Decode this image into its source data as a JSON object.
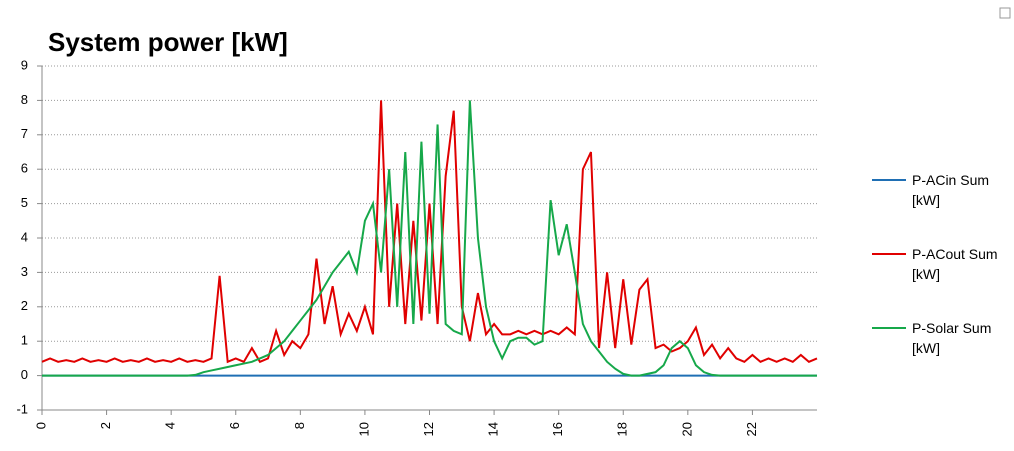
{
  "chart_data": {
    "type": "line",
    "title": "System power [kW]",
    "x": [
      0,
      0.25,
      0.5,
      0.75,
      1,
      1.25,
      1.5,
      1.75,
      2,
      2.25,
      2.5,
      2.75,
      3,
      3.25,
      3.5,
      3.75,
      4,
      4.25,
      4.5,
      4.75,
      5,
      5.25,
      5.5,
      5.75,
      6,
      6.25,
      6.5,
      6.75,
      7,
      7.25,
      7.5,
      7.75,
      8,
      8.25,
      8.5,
      8.75,
      9,
      9.25,
      9.5,
      9.75,
      10,
      10.25,
      10.5,
      10.75,
      11,
      11.25,
      11.5,
      11.75,
      12,
      12.25,
      12.5,
      12.75,
      13,
      13.25,
      13.5,
      13.75,
      14,
      14.25,
      14.5,
      14.75,
      15,
      15.25,
      15.5,
      15.75,
      16,
      16.25,
      16.5,
      16.75,
      17,
      17.25,
      17.5,
      17.75,
      18,
      18.25,
      18.5,
      18.75,
      19,
      19.25,
      19.5,
      19.75,
      20,
      20.25,
      20.5,
      20.75,
      21,
      21.25,
      21.5,
      21.75,
      22,
      22.25,
      22.5,
      22.75,
      23,
      23.25,
      23.5,
      23.75,
      24
    ],
    "series": [
      {
        "name": "P-ACin Sum [kW]",
        "color": "#1f6fb4",
        "values": [
          0,
          0,
          0,
          0,
          0,
          0,
          0,
          0,
          0,
          0,
          0,
          0,
          0,
          0,
          0,
          0,
          0,
          0,
          0,
          0,
          0,
          0,
          0,
          0,
          0,
          0,
          0,
          0,
          0,
          0,
          0,
          0,
          0,
          0,
          0,
          0,
          0,
          0,
          0,
          0,
          0,
          0,
          0,
          0,
          0,
          0,
          0,
          0,
          0,
          0,
          0,
          0,
          0,
          0,
          0,
          0,
          0,
          0,
          0,
          0,
          0,
          0,
          0,
          0,
          0,
          0,
          0,
          0,
          0,
          0,
          0,
          0,
          0,
          0,
          0,
          0,
          0,
          0,
          0,
          0,
          0,
          0,
          0,
          0,
          0,
          0,
          0,
          0,
          0,
          0,
          0,
          0,
          0,
          0,
          0,
          0,
          0
        ]
      },
      {
        "name": "P-ACout Sum [kW]",
        "color": "#e00000",
        "values": [
          0.4,
          0.5,
          0.4,
          0.45,
          0.4,
          0.5,
          0.4,
          0.45,
          0.4,
          0.5,
          0.4,
          0.45,
          0.4,
          0.5,
          0.4,
          0.45,
          0.4,
          0.5,
          0.4,
          0.45,
          0.4,
          0.5,
          2.9,
          0.4,
          0.5,
          0.4,
          0.8,
          0.4,
          0.5,
          1.3,
          0.6,
          1.0,
          0.8,
          1.2,
          3.4,
          1.5,
          2.6,
          1.2,
          1.8,
          1.3,
          2.0,
          1.2,
          8.0,
          2.0,
          5.0,
          1.5,
          4.5,
          1.6,
          5.0,
          1.5,
          5.8,
          7.7,
          2.0,
          1.0,
          2.4,
          1.2,
          1.5,
          1.2,
          1.2,
          1.3,
          1.2,
          1.3,
          1.2,
          1.3,
          1.2,
          1.4,
          1.2,
          6.0,
          6.5,
          0.8,
          3.0,
          0.8,
          2.8,
          0.9,
          2.5,
          2.8,
          0.8,
          0.9,
          0.7,
          0.8,
          1.0,
          1.4,
          0.6,
          0.9,
          0.5,
          0.8,
          0.5,
          0.4,
          0.6,
          0.4,
          0.5,
          0.4,
          0.5,
          0.4,
          0.6,
          0.4,
          0.5
        ]
      },
      {
        "name": "P-Solar Sum [kW]",
        "color": "#16a84a",
        "values": [
          0,
          0,
          0,
          0,
          0,
          0,
          0,
          0,
          0,
          0,
          0,
          0,
          0,
          0,
          0,
          0,
          0,
          0,
          0,
          0.02,
          0.1,
          0.15,
          0.2,
          0.25,
          0.3,
          0.35,
          0.4,
          0.5,
          0.6,
          0.8,
          1.0,
          1.3,
          1.6,
          1.9,
          2.2,
          2.6,
          3.0,
          3.3,
          3.6,
          3.0,
          4.5,
          5.0,
          3.0,
          6.0,
          2.0,
          6.5,
          1.5,
          6.8,
          1.8,
          7.3,
          1.5,
          1.3,
          1.2,
          8.0,
          4.0,
          2.0,
          1.0,
          0.5,
          1.0,
          1.1,
          1.1,
          0.9,
          1.0,
          5.1,
          3.5,
          4.4,
          3.0,
          1.5,
          1.0,
          0.7,
          0.4,
          0.2,
          0.05,
          0,
          0,
          0.05,
          0.1,
          0.3,
          0.8,
          1.0,
          0.8,
          0.3,
          0.1,
          0.02,
          0,
          0,
          0,
          0,
          0,
          0,
          0,
          0,
          0,
          0,
          0,
          0,
          0
        ]
      }
    ],
    "xlim": [
      0,
      24
    ],
    "xticks": [
      0,
      2,
      4,
      6,
      8,
      10,
      12,
      14,
      16,
      18,
      20,
      22
    ],
    "ylim": [
      -1,
      9
    ],
    "yticks": [
      -1,
      0,
      1,
      2,
      3,
      4,
      5,
      6,
      7,
      8,
      9
    ],
    "grid": true
  }
}
